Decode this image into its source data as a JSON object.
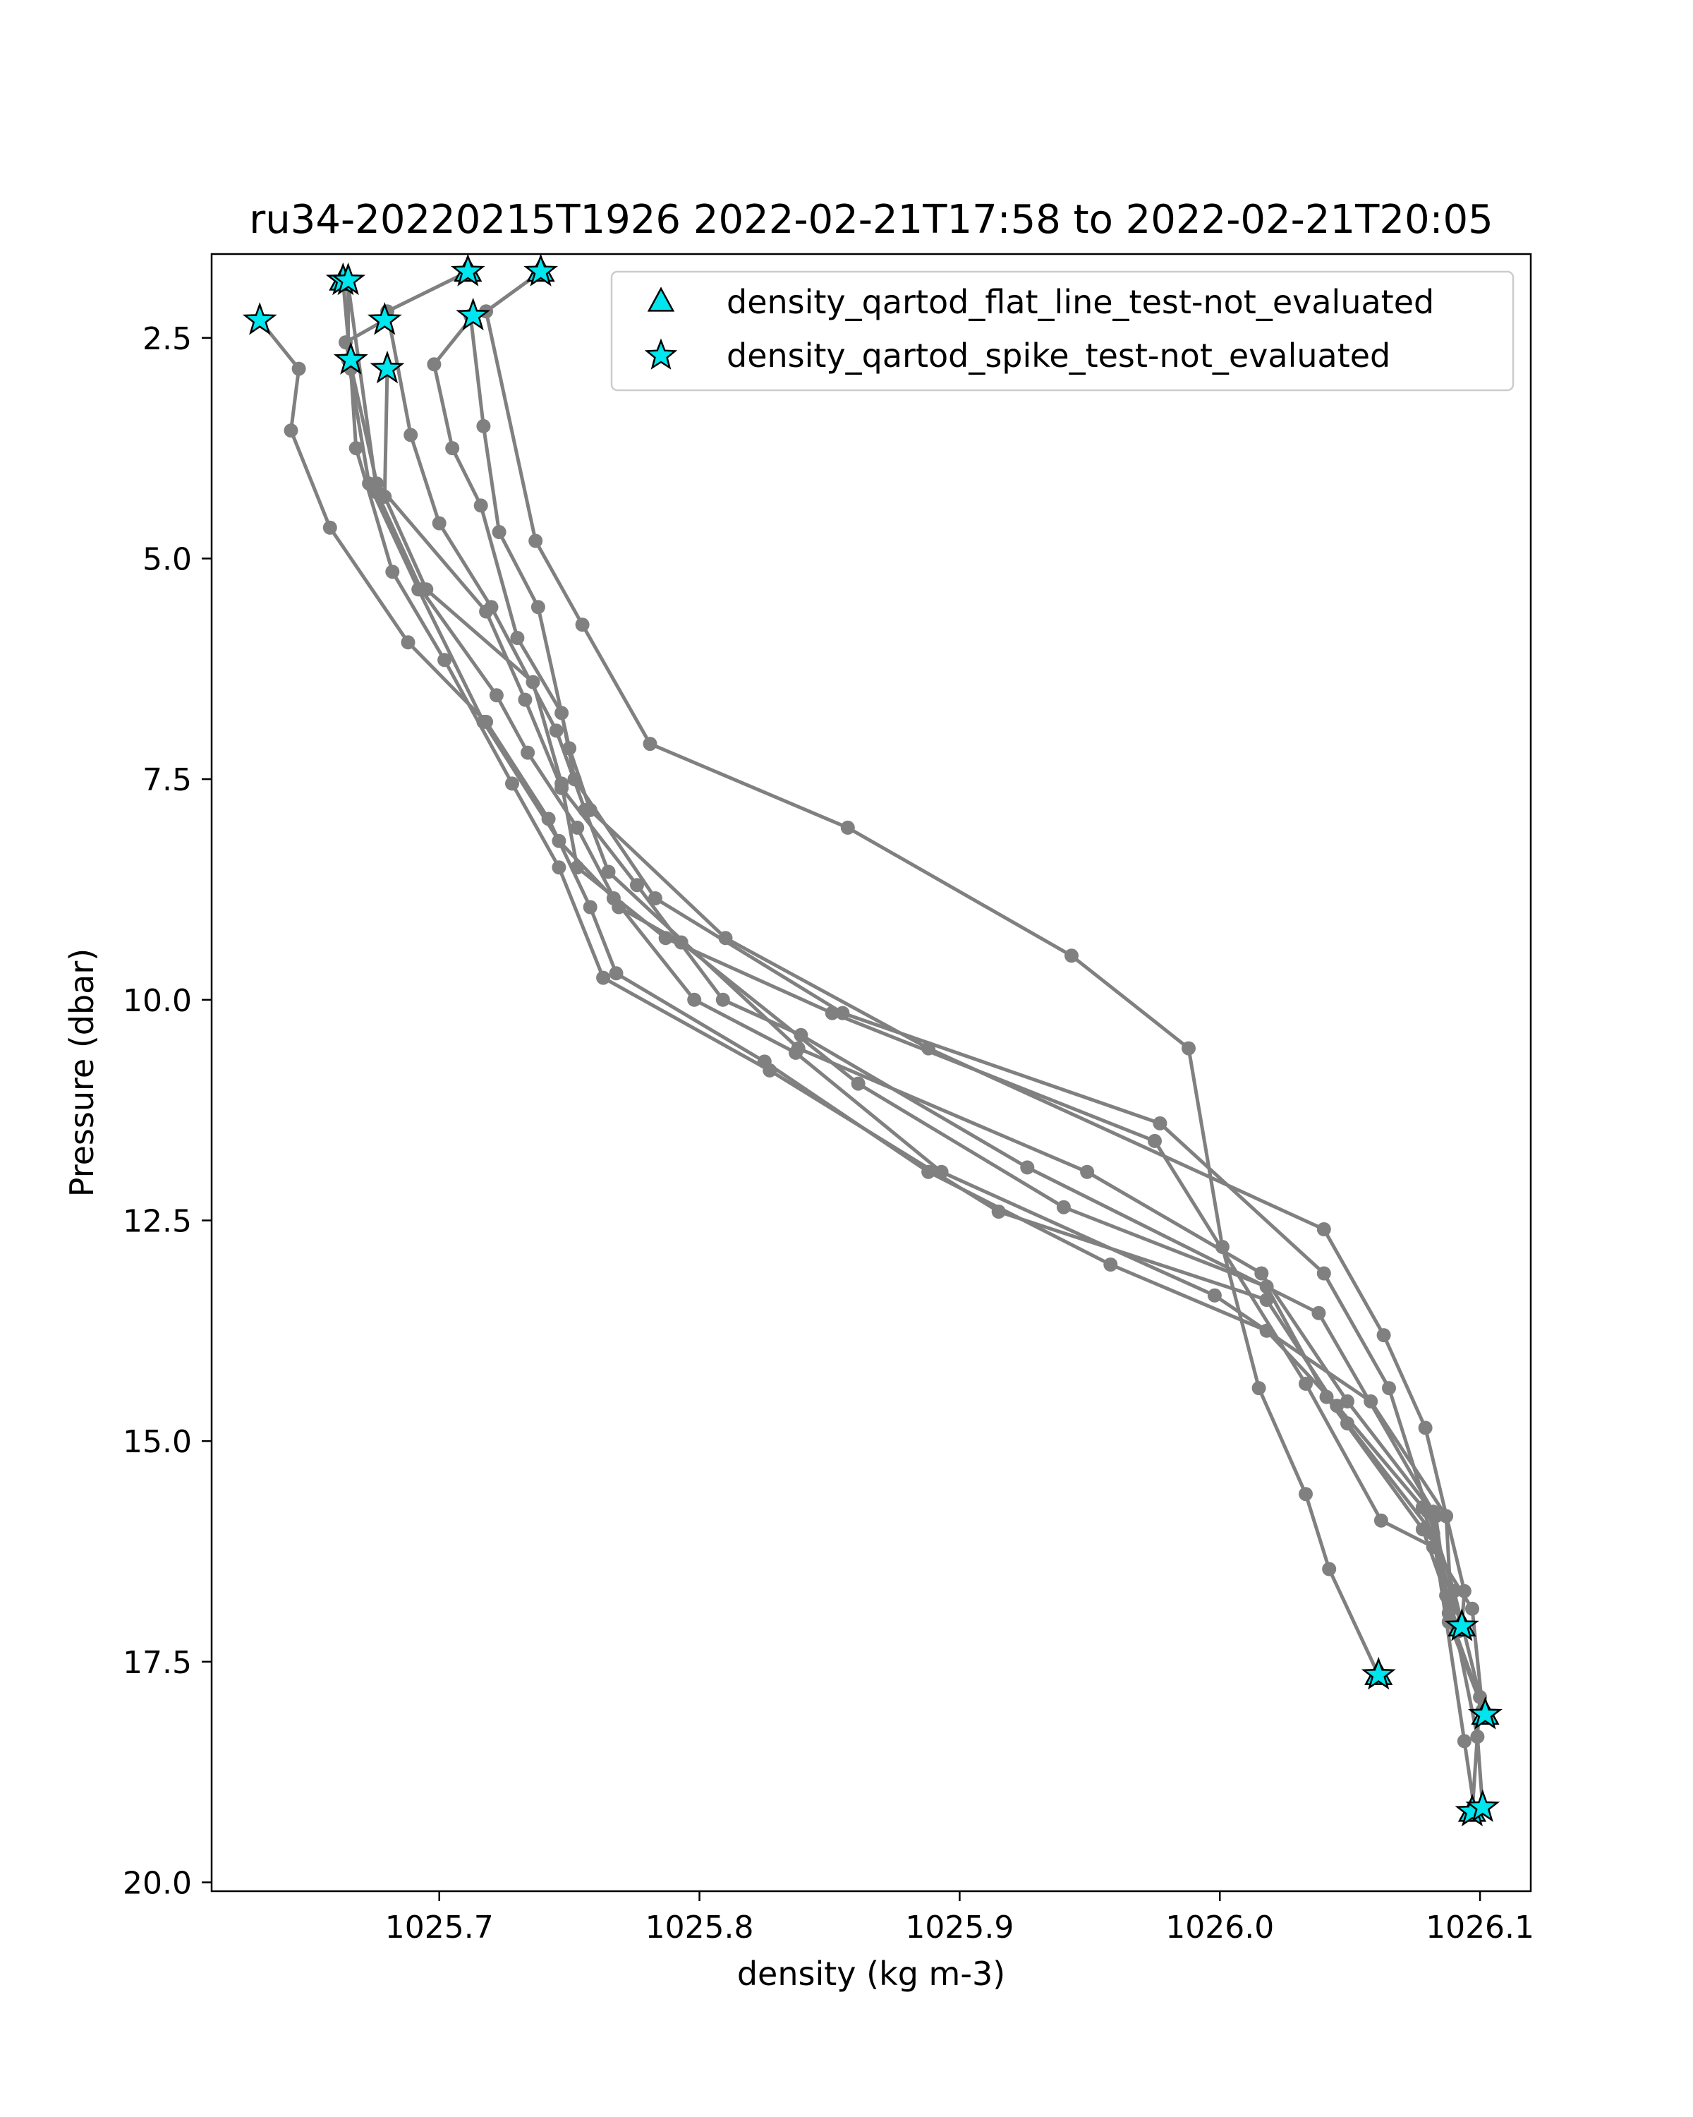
{
  "chart_data": {
    "type": "line",
    "title": "ru34-20220215T1926 2022-02-21T17:58 to 2022-02-21T20:05",
    "xlabel": "density (kg m-3)",
    "ylabel": "Pressure (dbar)",
    "xlim": [
      1025.6125,
      1026.1195
    ],
    "ylim": [
      20.1,
      1.55
    ],
    "y_inverted": true,
    "grid": false,
    "legend_placement": "top-right",
    "x_ticks": [
      1025.7,
      1025.8,
      1025.9,
      1026.0,
      1026.1
    ],
    "x_tick_labels": [
      "1025.7",
      "1025.8",
      "1025.9",
      "1026.0",
      "1026.1"
    ],
    "y_ticks": [
      2.5,
      5.0,
      7.5,
      10.0,
      12.5,
      15.0,
      17.5,
      20.0
    ],
    "y_tick_labels": [
      "2.5",
      "5.0",
      "7.5",
      "10.0",
      "12.5",
      "15.0",
      "17.5",
      "20.0"
    ],
    "line_color": "#808080",
    "marker_color": "#00e5ee",
    "legend": [
      {
        "label": "density_qartod_flat_line_test-not_evaluated",
        "marker": "triangle"
      },
      {
        "label": "density_qartod_spike_test-not_evaluated",
        "marker": "star"
      }
    ],
    "series": [
      {
        "points": [
          [
            1025.631,
            2.3
          ],
          [
            1025.646,
            2.85
          ],
          [
            1025.643,
            3.55
          ],
          [
            1025.658,
            4.65
          ],
          [
            1025.688,
            5.95
          ],
          [
            1025.718,
            6.85
          ],
          [
            1025.742,
            7.95
          ],
          [
            1025.758,
            8.95
          ],
          [
            1025.768,
            9.7
          ],
          [
            1025.825,
            10.7
          ],
          [
            1025.888,
            11.95
          ],
          [
            1025.958,
            13.0
          ],
          [
            1026.018,
            13.75
          ],
          [
            1026.045,
            14.6
          ],
          [
            1026.078,
            15.75
          ],
          [
            1026.093,
            17.1
          ]
        ]
      },
      {
        "points": [
          [
            1025.663,
            1.85
          ],
          [
            1025.666,
            2.85
          ],
          [
            1025.668,
            3.75
          ],
          [
            1025.682,
            5.15
          ],
          [
            1025.702,
            6.15
          ],
          [
            1025.728,
            7.55
          ],
          [
            1025.746,
            8.5
          ],
          [
            1025.763,
            9.75
          ],
          [
            1025.827,
            10.8
          ],
          [
            1025.915,
            12.4
          ],
          [
            1026.018,
            13.4
          ],
          [
            1026.049,
            14.8
          ],
          [
            1026.082,
            16.05
          ],
          [
            1026.094,
            18.4
          ],
          [
            1026.098,
            19.2
          ]
        ]
      },
      {
        "points": [
          [
            1025.665,
            1.85
          ],
          [
            1025.665,
            2.75
          ],
          [
            1025.673,
            4.15
          ],
          [
            1025.692,
            5.35
          ],
          [
            1025.717,
            6.85
          ],
          [
            1025.746,
            8.2
          ],
          [
            1025.767,
            8.85
          ],
          [
            1025.798,
            10.0
          ],
          [
            1025.837,
            10.6
          ],
          [
            1025.893,
            11.95
          ],
          [
            1025.998,
            13.35
          ],
          [
            1026.058,
            14.55
          ],
          [
            1026.087,
            15.85
          ],
          [
            1026.089,
            16.9
          ],
          [
            1026.099,
            18.35
          ],
          [
            1026.101,
            19.15
          ]
        ]
      },
      {
        "points": [
          [
            1025.665,
            1.9
          ],
          [
            1025.676,
            4.25
          ],
          [
            1025.693,
            5.35
          ],
          [
            1025.722,
            6.55
          ],
          [
            1025.734,
            7.2
          ],
          [
            1025.753,
            8.05
          ],
          [
            1025.769,
            8.95
          ],
          [
            1025.793,
            9.35
          ],
          [
            1025.861,
            10.95
          ],
          [
            1025.94,
            12.35
          ],
          [
            1026.018,
            13.25
          ],
          [
            1026.041,
            14.5
          ],
          [
            1026.078,
            16.0
          ],
          [
            1026.087,
            16.75
          ],
          [
            1026.092,
            17.15
          ]
        ]
      },
      {
        "points": [
          [
            1025.679,
            2.3
          ],
          [
            1025.664,
            2.55
          ],
          [
            1025.676,
            4.15
          ],
          [
            1025.718,
            5.6
          ],
          [
            1025.733,
            6.6
          ],
          [
            1025.747,
            7.6
          ],
          [
            1025.776,
            8.7
          ],
          [
            1025.809,
            10.0
          ],
          [
            1025.839,
            10.4
          ],
          [
            1025.926,
            11.9
          ],
          [
            1026.038,
            13.55
          ],
          [
            1026.082,
            15.8
          ],
          [
            1026.088,
            17.05
          ],
          [
            1026.102,
            18.1
          ]
        ]
      },
      {
        "points": [
          [
            1025.68,
            2.85
          ],
          [
            1025.679,
            4.3
          ],
          [
            1025.695,
            5.35
          ],
          [
            1025.736,
            6.4
          ],
          [
            1025.747,
            7.55
          ],
          [
            1025.753,
            8.5
          ],
          [
            1025.787,
            9.3
          ],
          [
            1025.851,
            10.15
          ],
          [
            1025.975,
            11.6
          ],
          [
            1026.033,
            14.35
          ],
          [
            1026.062,
            15.9
          ],
          [
            1026.082,
            16.2
          ],
          [
            1026.097,
            16.9
          ],
          [
            1026.101,
            18.05
          ]
        ]
      },
      {
        "points": [
          [
            1025.711,
            1.75
          ],
          [
            1025.68,
            2.2
          ],
          [
            1025.689,
            3.6
          ],
          [
            1025.7,
            4.6
          ],
          [
            1025.72,
            5.55
          ],
          [
            1025.745,
            6.95
          ],
          [
            1025.756,
            7.85
          ],
          [
            1025.765,
            8.55
          ],
          [
            1025.838,
            10.55
          ],
          [
            1025.949,
            11.95
          ],
          [
            1026.016,
            13.1
          ],
          [
            1026.049,
            14.55
          ],
          [
            1026.083,
            15.85
          ],
          [
            1026.088,
            16.95
          ],
          [
            1026.102,
            18.1
          ]
        ]
      },
      {
        "points": [
          [
            1025.713,
            2.25
          ],
          [
            1025.698,
            2.8
          ],
          [
            1025.705,
            3.75
          ],
          [
            1025.716,
            4.4
          ],
          [
            1025.73,
            5.9
          ],
          [
            1025.747,
            6.75
          ],
          [
            1025.752,
            7.5
          ],
          [
            1025.783,
            8.85
          ],
          [
            1025.855,
            10.15
          ],
          [
            1025.977,
            11.4
          ],
          [
            1026.04,
            13.1
          ],
          [
            1026.065,
            14.4
          ],
          [
            1026.08,
            15.8
          ],
          [
            1026.09,
            16.7
          ],
          [
            1026.1,
            17.9
          ],
          [
            1026.097,
            19.2
          ]
        ]
      },
      {
        "points": [
          [
            1025.712,
            2.25
          ],
          [
            1025.717,
            3.5
          ],
          [
            1025.723,
            4.7
          ],
          [
            1025.738,
            5.55
          ],
          [
            1025.75,
            7.15
          ],
          [
            1025.758,
            7.85
          ],
          [
            1025.81,
            9.3
          ],
          [
            1025.888,
            10.55
          ],
          [
            1026.04,
            12.6
          ],
          [
            1026.063,
            13.8
          ],
          [
            1026.079,
            14.85
          ],
          [
            1026.094,
            16.7
          ],
          [
            1026.093,
            17.1
          ]
        ]
      },
      {
        "points": [
          [
            1025.739,
            1.75
          ],
          [
            1025.718,
            2.2
          ],
          [
            1025.737,
            4.8
          ],
          [
            1025.755,
            5.75
          ],
          [
            1025.781,
            7.1
          ],
          [
            1025.857,
            8.05
          ],
          [
            1025.943,
            9.5
          ],
          [
            1025.988,
            10.55
          ],
          [
            1026.001,
            12.8
          ],
          [
            1026.015,
            14.4
          ],
          [
            1026.033,
            15.6
          ],
          [
            1026.042,
            16.45
          ],
          [
            1026.061,
            17.65
          ]
        ]
      }
    ],
    "star_markers": [
      [
        1025.631,
        2.3
      ],
      [
        1025.663,
        1.85
      ],
      [
        1025.665,
        1.85
      ],
      [
        1025.679,
        2.3
      ],
      [
        1025.711,
        1.75
      ],
      [
        1025.739,
        1.75
      ],
      [
        1025.713,
        2.25
      ],
      [
        1025.666,
        2.75
      ],
      [
        1025.68,
        2.85
      ],
      [
        1026.093,
        17.1
      ],
      [
        1026.061,
        17.65
      ],
      [
        1026.102,
        18.1
      ],
      [
        1026.097,
        19.2
      ],
      [
        1026.101,
        19.15
      ]
    ],
    "triangle_markers": [
      [
        1025.663,
        1.85
      ],
      [
        1025.711,
        1.75
      ],
      [
        1025.739,
        1.75
      ],
      [
        1026.093,
        17.1
      ],
      [
        1026.061,
        17.65
      ],
      [
        1026.102,
        18.1
      ],
      [
        1026.097,
        19.2
      ]
    ]
  }
}
